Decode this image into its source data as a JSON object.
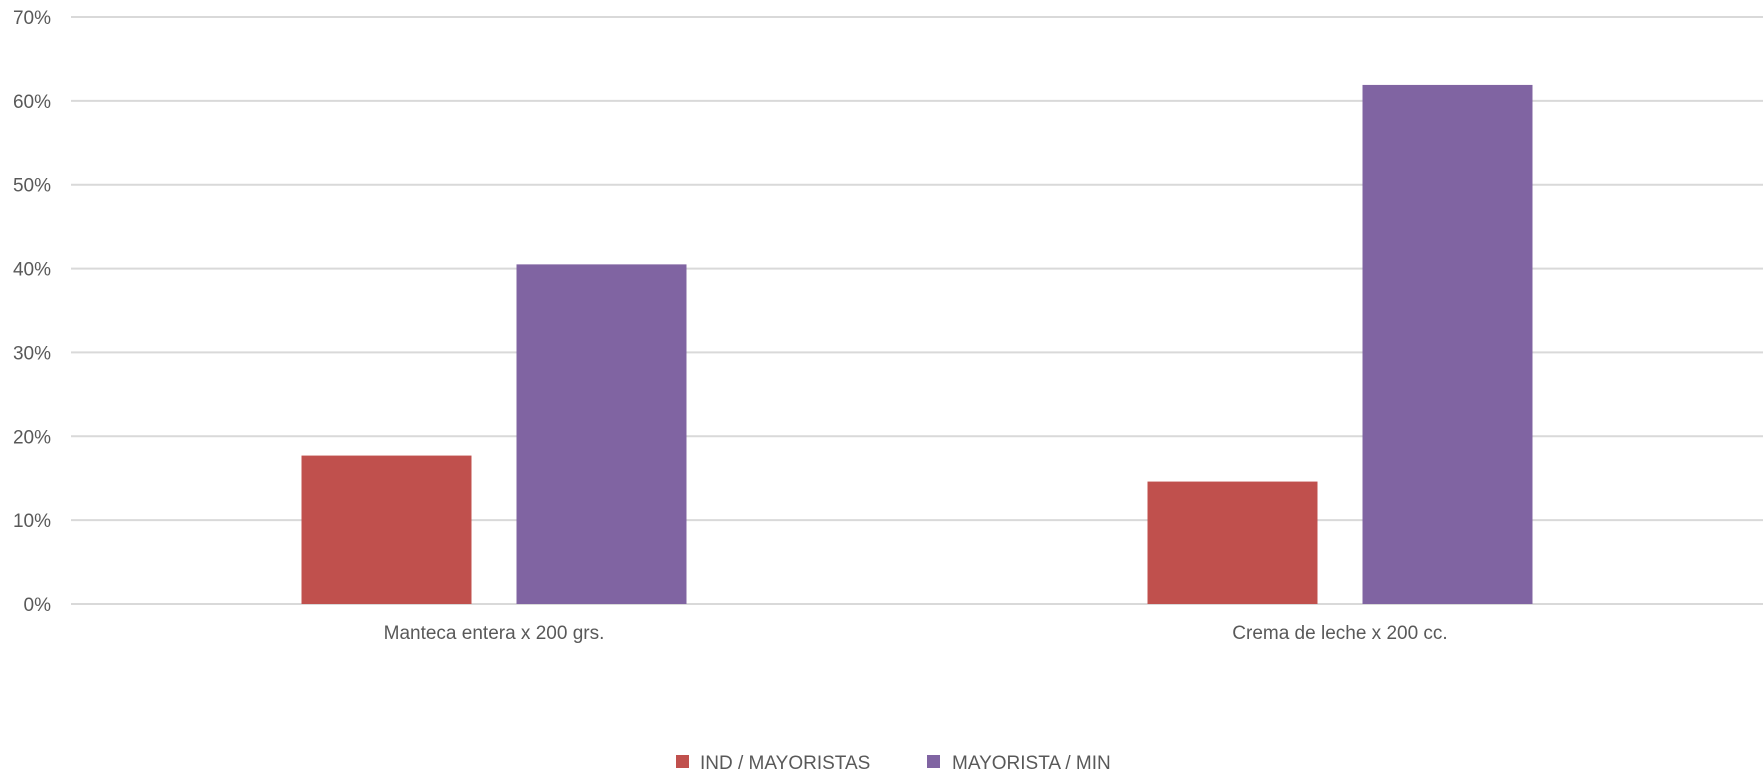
{
  "chart_data": {
    "type": "bar",
    "title": "",
    "xlabel": "",
    "ylabel": "",
    "categories": [
      "Manteca entera x 200 grs.",
      "Crema de leche x 200 cc."
    ],
    "series": [
      {
        "name": "IND / MAYORISTAS",
        "values": [
          17.7,
          14.6
        ],
        "color": "#C0504D"
      },
      {
        "name": "MAYORISTA / MIN",
        "values": [
          40.5,
          61.9
        ],
        "color": "#8064A2"
      }
    ],
    "ylim": [
      0,
      70
    ],
    "yticks": [
      0,
      10,
      20,
      30,
      40,
      50,
      60,
      70
    ],
    "ytick_labels": [
      "0%",
      "10%",
      "20%",
      "30%",
      "40%",
      "50%",
      "60%",
      "70%"
    ],
    "grid": true,
    "gridline_color": "#D9D9D9",
    "legend_position": "bottom"
  }
}
